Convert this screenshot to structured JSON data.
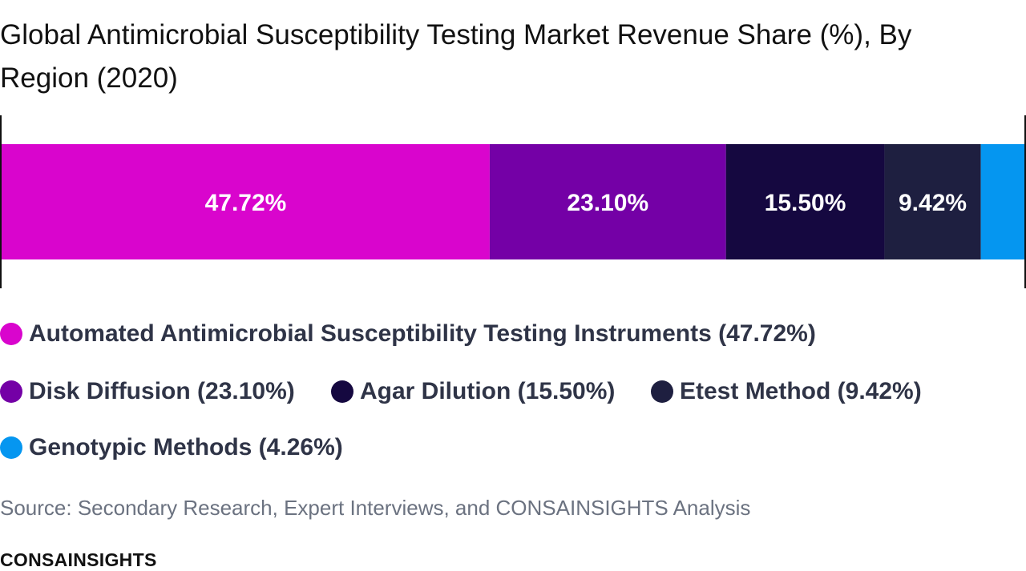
{
  "chart_data": {
    "type": "bar",
    "orientation": "horizontal-stacked-100",
    "title": "Global Antimicrobial Susceptibility Testing Market Revenue Share (%), By Region (2020)",
    "categories": [
      "Automated Antimicrobial Susceptibility Testing Instruments",
      "Disk Diffusion",
      "Agar Dilution",
      "Etest Method",
      "Genotypic Methods"
    ],
    "values": [
      47.72,
      23.1,
      15.5,
      9.42,
      4.26
    ],
    "data_labels": [
      "47.72%",
      "23.10%",
      "15.50%",
      "9.42%",
      ""
    ],
    "colors": [
      "#d905cd",
      "#7400a6",
      "#150840",
      "#1e1f40",
      "#0596f0"
    ],
    "legend_labels": [
      "Automated Antimicrobial Susceptibility Testing Instruments (47.72%)",
      "Disk Diffusion (23.10%)",
      "Agar Dilution (15.50%)",
      "Etest Method (9.42%)",
      "Genotypic Methods (4.26%)"
    ],
    "legend_placement": "bottom",
    "xlim": [
      0,
      100
    ],
    "grid": false
  },
  "footer": {
    "source": "Source: Secondary Research, Expert Interviews, and CONSAINSIGHTS Analysis",
    "brand": "CONSAINSIGHTS"
  }
}
